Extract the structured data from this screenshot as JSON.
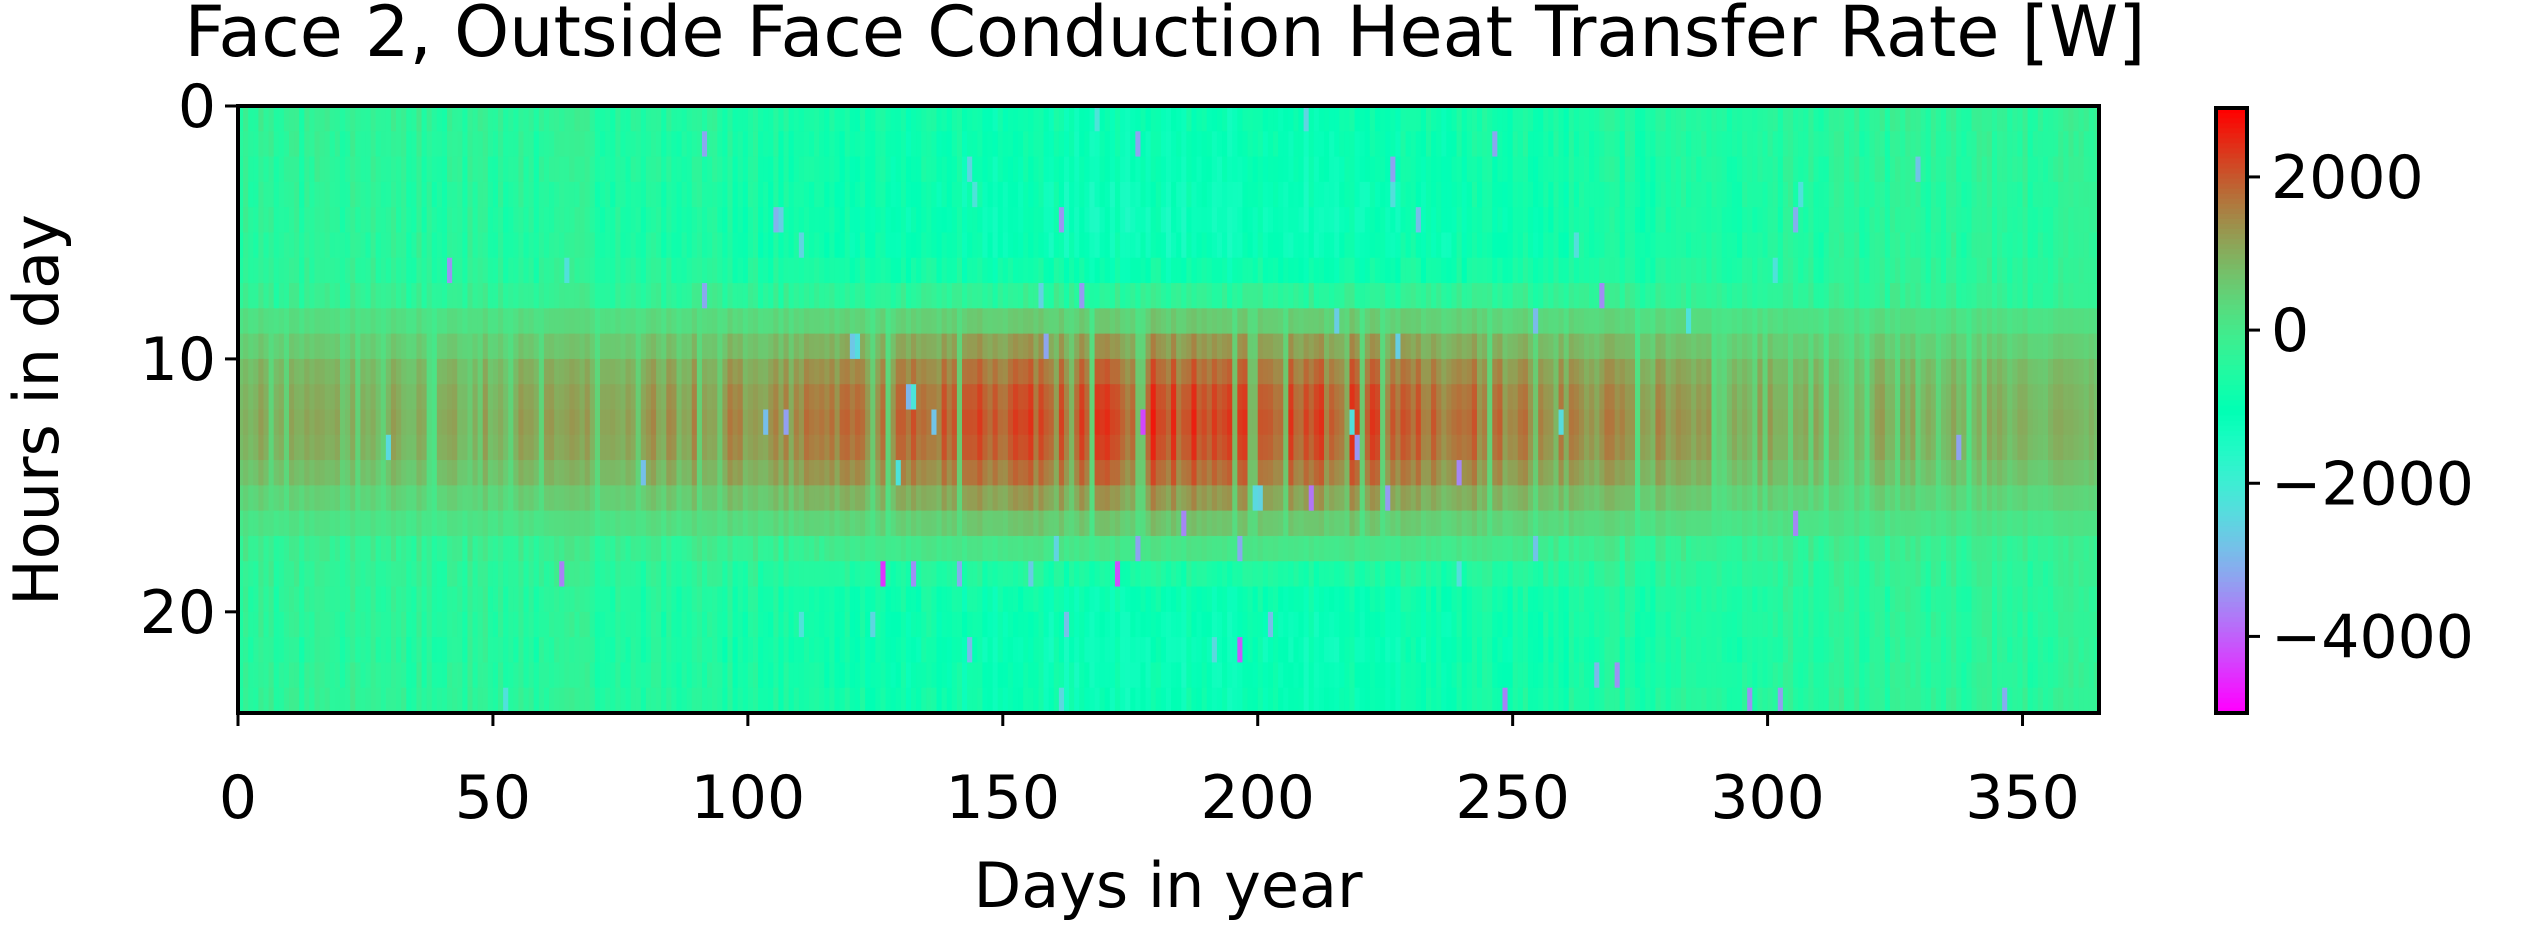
{
  "chart_data": {
    "type": "heatmap",
    "title": "Face 2, Outside Face Conduction Heat Transfer Rate [W]",
    "xlabel": "Days in year",
    "ylabel": "Hours in day",
    "xlim": [
      0,
      365
    ],
    "ylim": [
      24,
      0
    ],
    "x_ticks": [
      0,
      50,
      100,
      150,
      200,
      250,
      300,
      350
    ],
    "y_ticks": [
      0,
      10,
      20
    ],
    "grid": false,
    "colorbar": {
      "colormap": "rainbow",
      "range": [
        -5000,
        2900
      ],
      "ticks": [
        2000,
        0,
        -2000,
        -4000
      ],
      "tick_labels": [
        "2000",
        "0",
        "−2000",
        "−4000"
      ]
    },
    "n_days": 365,
    "n_hours": 24,
    "hourly_profile_summer_W": [
      -900,
      -950,
      -1000,
      -1050,
      -1100,
      -1050,
      -800,
      -200,
      600,
      1300,
      1800,
      2100,
      2200,
      2100,
      1800,
      1300,
      700,
      100,
      -500,
      -900,
      -1000,
      -1050,
      -1000,
      -950
    ],
    "hourly_profile_winter_W": [
      -200,
      -250,
      -250,
      -300,
      -300,
      -300,
      -250,
      -150,
      200,
      500,
      800,
      900,
      950,
      900,
      700,
      400,
      100,
      -100,
      -200,
      -250,
      -250,
      -300,
      -250,
      -200
    ],
    "notable_minima": [
      {
        "day": 126,
        "hour": 18,
        "value": -4500
      },
      {
        "day": 172,
        "hour": 18,
        "value": -4200
      },
      {
        "day": 177,
        "hour": 12,
        "value": -4300
      },
      {
        "day": 196,
        "hour": 21,
        "value": -4100
      },
      {
        "day": 210,
        "hour": 15,
        "value": -3800
      }
    ]
  }
}
